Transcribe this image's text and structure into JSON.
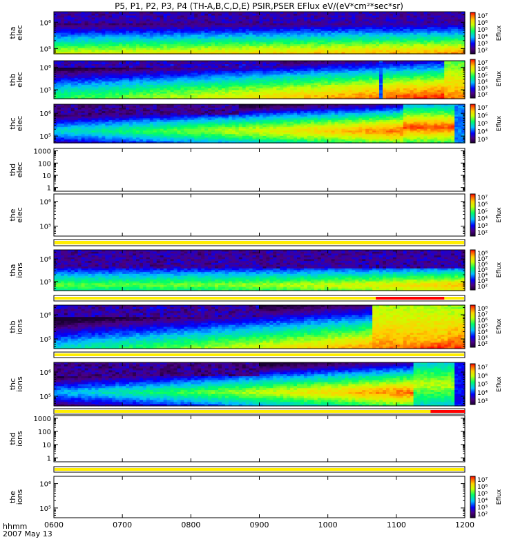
{
  "title": "P5, P1, P2, P3, P4 (TH-A,B,C,D,E) PSIR,PSER EFlux eV/(eV*cm²*sec*sr)",
  "chart_data": {
    "type": "heatmap",
    "x_axis": {
      "ticks": [
        "0600",
        "0700",
        "0800",
        "0900",
        "1000",
        "1100",
        "1200"
      ],
      "range": [
        6.0,
        12.0
      ],
      "label": "hhmm",
      "date": "2007 May 13"
    },
    "colorbar_label": "Eflux",
    "panels": [
      {
        "id": "tha-elec",
        "label": [
          "tha",
          "elec"
        ],
        "kind": "elec",
        "y_ticks": [
          {
            "v": 1000000,
            "t": "10⁶"
          },
          {
            "v": 100000,
            "t": "10⁵"
          }
        ],
        "ylog": [
          4.8,
          6.4
        ],
        "cbar": [
          "10⁷",
          "10⁶",
          "10⁵",
          "10⁴",
          "10³",
          "10²"
        ],
        "bar": null,
        "red": null
      },
      {
        "id": "thb-elec",
        "label": [
          "thb",
          "elec"
        ],
        "kind": "elecB",
        "y_ticks": [
          {
            "v": 1000000,
            "t": "10⁶"
          },
          {
            "v": 100000,
            "t": "10⁵"
          }
        ],
        "ylog": [
          4.6,
          6.3
        ],
        "cbar": [
          "10⁷",
          "10⁶",
          "10⁵",
          "10⁴",
          "10³",
          "10²"
        ],
        "bar": null,
        "red": null
      },
      {
        "id": "thc-elec",
        "label": [
          "thc",
          "elec"
        ],
        "kind": "elecC",
        "y_ticks": [
          {
            "v": 1000000,
            "t": "10⁶"
          },
          {
            "v": 100000,
            "t": "10⁵"
          }
        ],
        "ylog": [
          4.7,
          6.4
        ],
        "cbar": [
          "10⁷",
          "10⁶",
          "10⁵",
          "10⁴",
          "10³"
        ],
        "bar": null,
        "red": null
      },
      {
        "id": "thd-elec",
        "label": [
          "thd",
          "elec"
        ],
        "kind": "empty",
        "y_ticks": [
          {
            "v": 1000,
            "t": "1000"
          },
          {
            "v": 100,
            "t": "100"
          },
          {
            "v": 10,
            "t": "10"
          },
          {
            "v": 1,
            "t": "1"
          }
        ],
        "ylog": [
          -0.3,
          3.2
        ],
        "cbar": null,
        "bar": null,
        "red": null
      },
      {
        "id": "the-elec",
        "label": [
          "the",
          "elec"
        ],
        "kind": "empty",
        "y_ticks": [
          {
            "v": 1000000,
            "t": "10⁶"
          },
          {
            "v": 100000,
            "t": "10⁵"
          }
        ],
        "ylog": [
          4.6,
          6.3
        ],
        "cbar": [
          "10⁷",
          "10⁶",
          "10⁵",
          "10⁴",
          "10³",
          "10²"
        ],
        "bar": "yellow",
        "red": null
      },
      {
        "id": "tha-ions",
        "label": [
          "tha",
          "ions"
        ],
        "kind": "ionsA",
        "y_ticks": [
          {
            "v": 1000000,
            "t": "10⁶"
          },
          {
            "v": 100000,
            "t": "10⁵"
          }
        ],
        "ylog": [
          4.6,
          6.4
        ],
        "cbar": [
          "10⁸",
          "10⁷",
          "10⁶",
          "10⁵",
          "10⁴",
          "10³",
          "10²"
        ],
        "bar": "yellow",
        "red": [
          10.7,
          11.7
        ]
      },
      {
        "id": "thb-ions",
        "label": [
          "thb",
          "ions"
        ],
        "kind": "ionsB",
        "y_ticks": [
          {
            "v": 1000000,
            "t": "10⁶"
          },
          {
            "v": 100000,
            "t": "10⁵"
          }
        ],
        "ylog": [
          4.6,
          6.4
        ],
        "cbar": [
          "10⁸",
          "10⁷",
          "10⁶",
          "10⁵",
          "10⁴",
          "10³",
          "10²"
        ],
        "bar": "yellow",
        "red": null
      },
      {
        "id": "thc-ions",
        "label": [
          "thc",
          "ions"
        ],
        "kind": "ionsC",
        "y_ticks": [
          {
            "v": 1000000,
            "t": "10⁶"
          },
          {
            "v": 100000,
            "t": "10⁵"
          }
        ],
        "ylog": [
          4.6,
          6.4
        ],
        "cbar": [
          "10⁷",
          "10⁶",
          "10⁵",
          "10⁴",
          "10³"
        ],
        "bar": "yellow",
        "red": [
          11.5,
          12.0
        ]
      },
      {
        "id": "thd-ions",
        "label": [
          "thd",
          "ions"
        ],
        "kind": "empty",
        "y_ticks": [
          {
            "v": 1000,
            "t": "1000"
          },
          {
            "v": 100,
            "t": "100"
          },
          {
            "v": 10,
            "t": "10"
          },
          {
            "v": 1,
            "t": "1"
          }
        ],
        "ylog": [
          -0.3,
          3.2
        ],
        "cbar": null,
        "bar": "yellow",
        "red": null
      },
      {
        "id": "the-ions",
        "label": [
          "the",
          "ions"
        ],
        "kind": "empty",
        "y_ticks": [
          {
            "v": 1000000,
            "t": "10⁶"
          },
          {
            "v": 100000,
            "t": "10⁵"
          }
        ],
        "ylog": [
          4.6,
          6.3
        ],
        "cbar": [
          "10⁷",
          "10⁶",
          "10⁵",
          "10⁴",
          "10³",
          "10²"
        ],
        "bar": null,
        "red": null
      }
    ]
  }
}
